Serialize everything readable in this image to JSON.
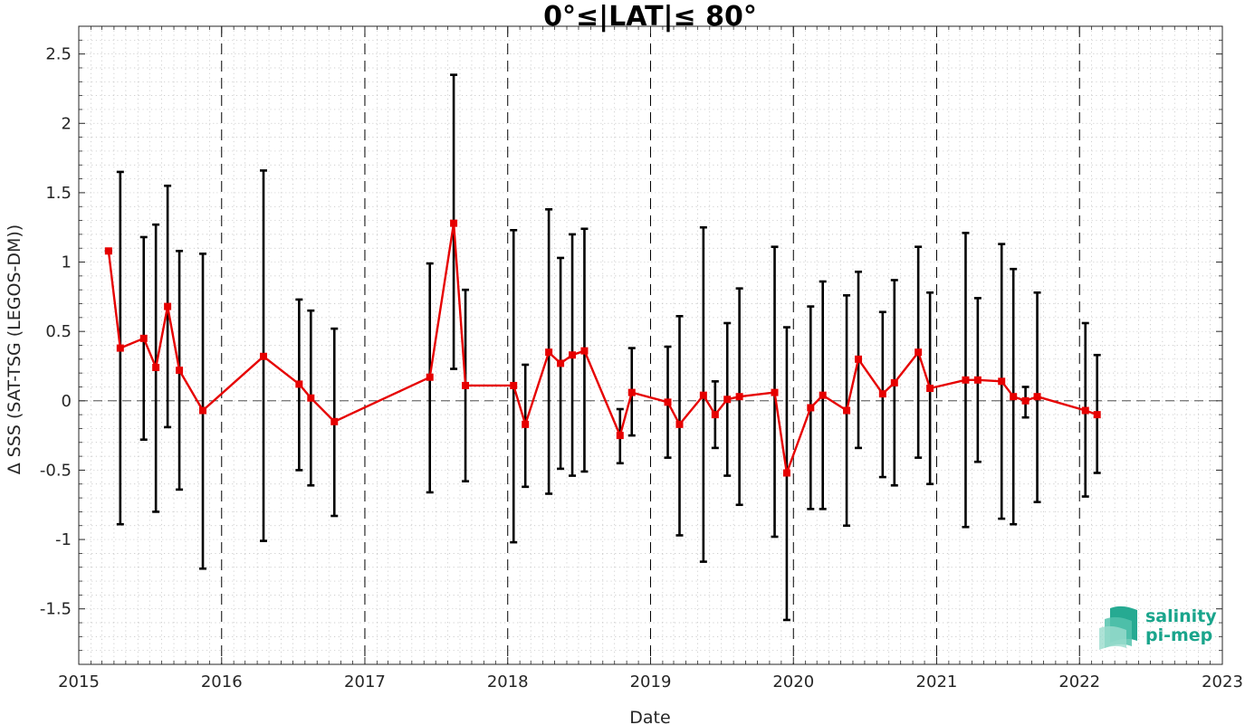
{
  "chart_data": {
    "type": "line",
    "title": "0°≤|LAT|≤ 80°",
    "xlabel": "Date",
    "ylabel": "Δ SSS (SAT-TSG (LEGOS-DM))",
    "xlim": [
      "2015-01-01",
      "2023-01-01"
    ],
    "ylim": [
      -1.9,
      2.7
    ],
    "x_ticks": [
      "2015",
      "2016",
      "2017",
      "2018",
      "2019",
      "2020",
      "2021",
      "2022",
      "2023"
    ],
    "y_ticks": [
      "-1.5",
      "-1",
      "-0.5",
      "0",
      "0.5",
      "1",
      "1.5",
      "2",
      "2.5"
    ],
    "grid": true,
    "year_separators": "dashed vertical lines at each year boundary",
    "zero_line": "dashed horizontal line at 0",
    "series": [
      {
        "line_color": "#e60000",
        "errorbar_color": "#000000",
        "points": [
          {
            "x": "2015-03-18",
            "y": 1.08,
            "lo": 1.08,
            "hi": 1.08
          },
          {
            "x": "2015-04-17",
            "y": 0.38,
            "lo": -0.89,
            "hi": 1.65
          },
          {
            "x": "2015-06-16",
            "y": 0.45,
            "lo": -0.28,
            "hi": 1.18
          },
          {
            "x": "2015-07-17",
            "y": 0.24,
            "lo": -0.8,
            "hi": 1.27
          },
          {
            "x": "2015-08-16",
            "y": 0.68,
            "lo": -0.19,
            "hi": 1.55
          },
          {
            "x": "2015-09-15",
            "y": 0.22,
            "lo": -0.64,
            "hi": 1.08
          },
          {
            "x": "2015-11-14",
            "y": -0.07,
            "lo": -1.21,
            "hi": 1.06
          },
          {
            "x": "2016-04-17",
            "y": 0.32,
            "lo": -1.01,
            "hi": 1.66
          },
          {
            "x": "2016-07-17",
            "y": 0.12,
            "lo": -0.5,
            "hi": 0.73
          },
          {
            "x": "2016-08-16",
            "y": 0.02,
            "lo": -0.61,
            "hi": 0.65
          },
          {
            "x": "2016-10-15",
            "y": -0.15,
            "lo": -0.83,
            "hi": 0.52
          },
          {
            "x": "2017-06-16",
            "y": 0.17,
            "lo": -0.66,
            "hi": 0.99
          },
          {
            "x": "2017-08-16",
            "y": 1.28,
            "lo": 0.23,
            "hi": 2.35
          },
          {
            "x": "2017-09-15",
            "y": 0.11,
            "lo": -0.58,
            "hi": 0.8
          },
          {
            "x": "2018-01-16",
            "y": 0.11,
            "lo": -1.02,
            "hi": 1.23
          },
          {
            "x": "2018-02-15",
            "y": -0.17,
            "lo": -0.62,
            "hi": 0.26
          },
          {
            "x": "2018-04-16",
            "y": 0.35,
            "lo": -0.67,
            "hi": 1.38
          },
          {
            "x": "2018-05-16",
            "y": 0.27,
            "lo": -0.49,
            "hi": 1.03
          },
          {
            "x": "2018-06-15",
            "y": 0.33,
            "lo": -0.54,
            "hi": 1.2
          },
          {
            "x": "2018-07-16",
            "y": 0.36,
            "lo": -0.51,
            "hi": 1.24
          },
          {
            "x": "2018-10-15",
            "y": -0.25,
            "lo": -0.45,
            "hi": -0.06
          },
          {
            "x": "2018-11-14",
            "y": 0.06,
            "lo": -0.25,
            "hi": 0.38
          },
          {
            "x": "2019-02-14",
            "y": -0.01,
            "lo": -0.41,
            "hi": 0.39
          },
          {
            "x": "2019-03-16",
            "y": -0.17,
            "lo": -0.97,
            "hi": 0.61
          },
          {
            "x": "2019-05-16",
            "y": 0.04,
            "lo": -1.16,
            "hi": 1.25
          },
          {
            "x": "2019-06-15",
            "y": -0.1,
            "lo": -0.34,
            "hi": 0.14
          },
          {
            "x": "2019-07-16",
            "y": 0.01,
            "lo": -0.54,
            "hi": 0.56
          },
          {
            "x": "2019-08-16",
            "y": 0.03,
            "lo": -0.75,
            "hi": 0.81
          },
          {
            "x": "2019-11-14",
            "y": 0.06,
            "lo": -0.98,
            "hi": 1.11
          },
          {
            "x": "2019-12-15",
            "y": -0.52,
            "lo": -1.58,
            "hi": 0.53
          },
          {
            "x": "2020-02-14",
            "y": -0.05,
            "lo": -0.78,
            "hi": 0.68
          },
          {
            "x": "2020-03-16",
            "y": 0.04,
            "lo": -0.78,
            "hi": 0.86
          },
          {
            "x": "2020-05-16",
            "y": -0.07,
            "lo": -0.9,
            "hi": 0.76
          },
          {
            "x": "2020-06-15",
            "y": 0.3,
            "lo": -0.34,
            "hi": 0.93
          },
          {
            "x": "2020-08-16",
            "y": 0.05,
            "lo": -0.55,
            "hi": 0.64
          },
          {
            "x": "2020-09-15",
            "y": 0.13,
            "lo": -0.61,
            "hi": 0.87
          },
          {
            "x": "2020-11-15",
            "y": 0.35,
            "lo": -0.41,
            "hi": 1.11
          },
          {
            "x": "2020-12-15",
            "y": 0.09,
            "lo": -0.6,
            "hi": 0.78
          },
          {
            "x": "2021-03-16",
            "y": 0.15,
            "lo": -0.91,
            "hi": 1.21
          },
          {
            "x": "2021-04-16",
            "y": 0.15,
            "lo": -0.44,
            "hi": 0.74
          },
          {
            "x": "2021-06-16",
            "y": 0.14,
            "lo": -0.85,
            "hi": 1.13
          },
          {
            "x": "2021-07-16",
            "y": 0.03,
            "lo": -0.89,
            "hi": 0.95
          },
          {
            "x": "2021-08-16",
            "y": 0.0,
            "lo": -0.12,
            "hi": 0.1
          },
          {
            "x": "2021-09-15",
            "y": 0.03,
            "lo": -0.73,
            "hi": 0.78
          },
          {
            "x": "2022-01-16",
            "y": -0.07,
            "lo": -0.69,
            "hi": 0.56
          },
          {
            "x": "2022-02-15",
            "y": -0.1,
            "lo": -0.52,
            "hi": 0.33
          }
        ]
      }
    ]
  },
  "logo": {
    "line1": "salinity",
    "line2": "pi-mep",
    "color": "#1aa58c"
  }
}
